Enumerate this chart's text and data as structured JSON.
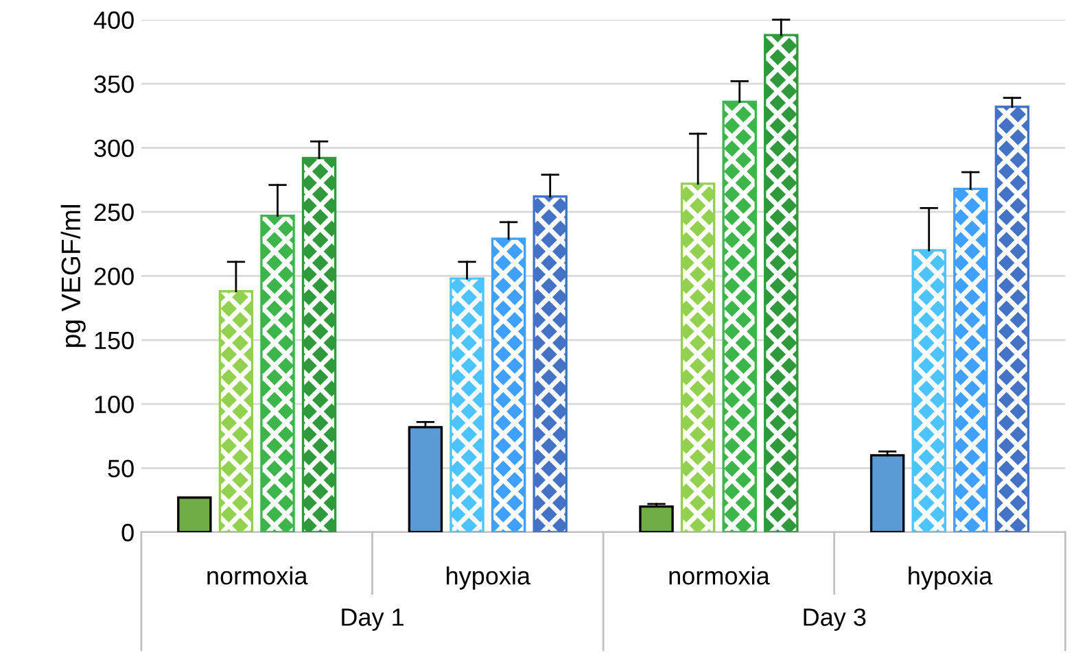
{
  "chart_data": {
    "type": "bar",
    "ylabel": "pg VEGF/ml",
    "categories": [
      "normoxia",
      "hypoxia",
      "normoxia",
      "hypoxia"
    ],
    "annotations": [
      "Day 1",
      "Day 3"
    ],
    "ylim": [
      0,
      400
    ],
    "yticks": [
      0,
      50,
      100,
      150,
      200,
      250,
      300,
      350,
      400
    ],
    "grid": "y",
    "series": [
      {
        "colors": [
          "#70ad47",
          "#5b9bd5",
          "#70ad47",
          "#5b9bd5"
        ],
        "values": [
          27,
          82,
          20,
          60
        ],
        "errors": [
          [
            27,
            27
          ],
          [
            82,
            86
          ],
          [
            20,
            22
          ],
          [
            60,
            63
          ]
        ]
      },
      {
        "colors": [
          "#92d050",
          "#4dc3ff",
          "#92d050",
          "#4dc3ff"
        ],
        "values": [
          188,
          198,
          272,
          220
        ],
        "errors": [
          [
            188,
            211
          ],
          [
            198,
            211
          ],
          [
            272,
            311
          ],
          [
            220,
            253
          ]
        ]
      },
      {
        "colors": [
          "#3cb54a",
          "#3fa0ff",
          "#3cb54a",
          "#3fa0ff"
        ],
        "values": [
          247,
          229,
          336,
          268
        ],
        "errors": [
          [
            247,
            271
          ],
          [
            229,
            242
          ],
          [
            336,
            352
          ],
          [
            268,
            281
          ]
        ]
      },
      {
        "colors": [
          "#2e9a3c",
          "#4472c4",
          "#2e9a3c",
          "#4472c4"
        ],
        "values": [
          292,
          262,
          388,
          332
        ],
        "errors": [
          [
            292,
            305
          ],
          [
            262,
            279
          ],
          [
            388,
            400
          ],
          [
            332,
            339
          ]
        ]
      }
    ]
  }
}
